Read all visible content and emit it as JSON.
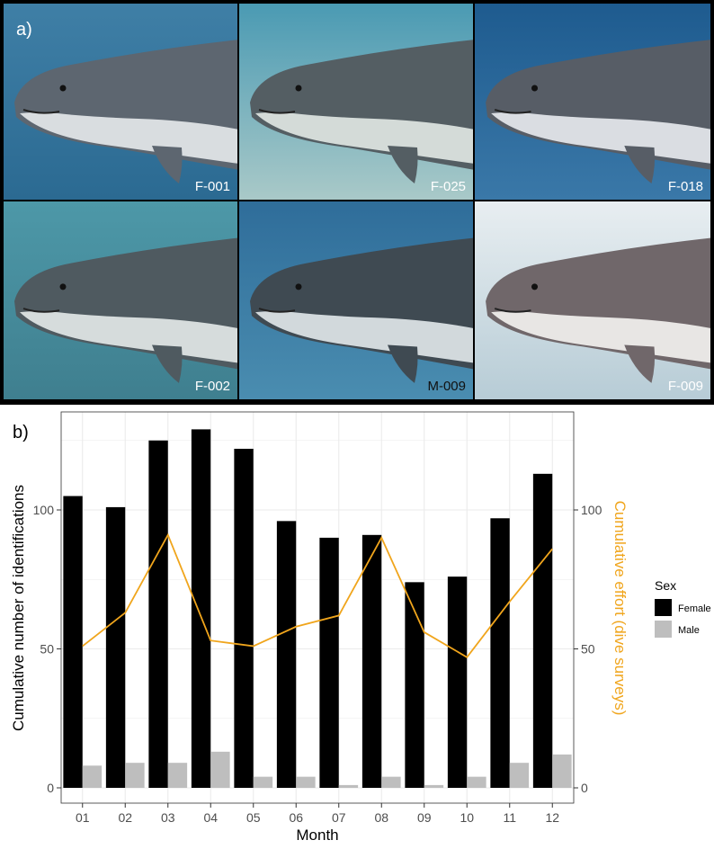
{
  "panel_a": {
    "letter": "a)",
    "tiles": [
      {
        "label": "F-001",
        "bg_top": "#3f7fa6",
        "bg_bottom": "#2b6a92",
        "shark": "#5d6670",
        "belly": "#d9dde0"
      },
      {
        "label": "F-025",
        "bg_top": "#4a9ab3",
        "bg_bottom": "#a9c9c8",
        "shark": "#545e63",
        "belly": "#d4dbd8"
      },
      {
        "label": "F-018",
        "bg_top": "#1e5b8f",
        "bg_bottom": "#3a78a8",
        "shark": "#575d66",
        "belly": "#dadde2"
      },
      {
        "label": "F-002",
        "bg_top": "#4d98a8",
        "bg_bottom": "#3f7f8f",
        "shark": "#4f5a60",
        "belly": "#d6dcdc"
      },
      {
        "label": "M-009",
        "bg_top": "#2f6d9a",
        "bg_bottom": "#4a8db0",
        "shark": "#3f4a52",
        "belly": "#d2d9dc"
      },
      {
        "label": "F-009",
        "bg_top": "#e8eef1",
        "bg_bottom": "#b7ccd6",
        "shark": "#70676a",
        "belly": "#e8e6e4"
      }
    ]
  },
  "panel_b": {
    "letter": "b)"
  },
  "chart_data": {
    "type": "bar",
    "categories": [
      "01",
      "02",
      "03",
      "04",
      "05",
      "06",
      "07",
      "08",
      "09",
      "10",
      "11",
      "12"
    ],
    "series": [
      {
        "name": "Female",
        "color": "#000000",
        "values": [
          105,
          101,
          125,
          129,
          122,
          96,
          90,
          91,
          74,
          76,
          97,
          113
        ]
      },
      {
        "name": "Male",
        "color": "#bebebe",
        "values": [
          8,
          9,
          9,
          13,
          4,
          4,
          1,
          4,
          1,
          4,
          9,
          12
        ]
      }
    ],
    "line_series": {
      "color": "#f0a51c",
      "values": [
        51,
        63,
        91,
        53,
        51,
        58,
        62,
        90,
        56,
        47,
        67,
        86
      ]
    },
    "xlabel": "Month",
    "ylabel": "Cumulative number of identifications",
    "y2label": "Cumulative effort (dive surveys)",
    "ylim": [
      0,
      135
    ],
    "y2lim": [
      0,
      135
    ],
    "yticks": [
      0,
      50,
      100
    ],
    "y2ticks": [
      0,
      50,
      100
    ],
    "legend": {
      "title": "Sex",
      "position": "right"
    },
    "grid": true
  }
}
